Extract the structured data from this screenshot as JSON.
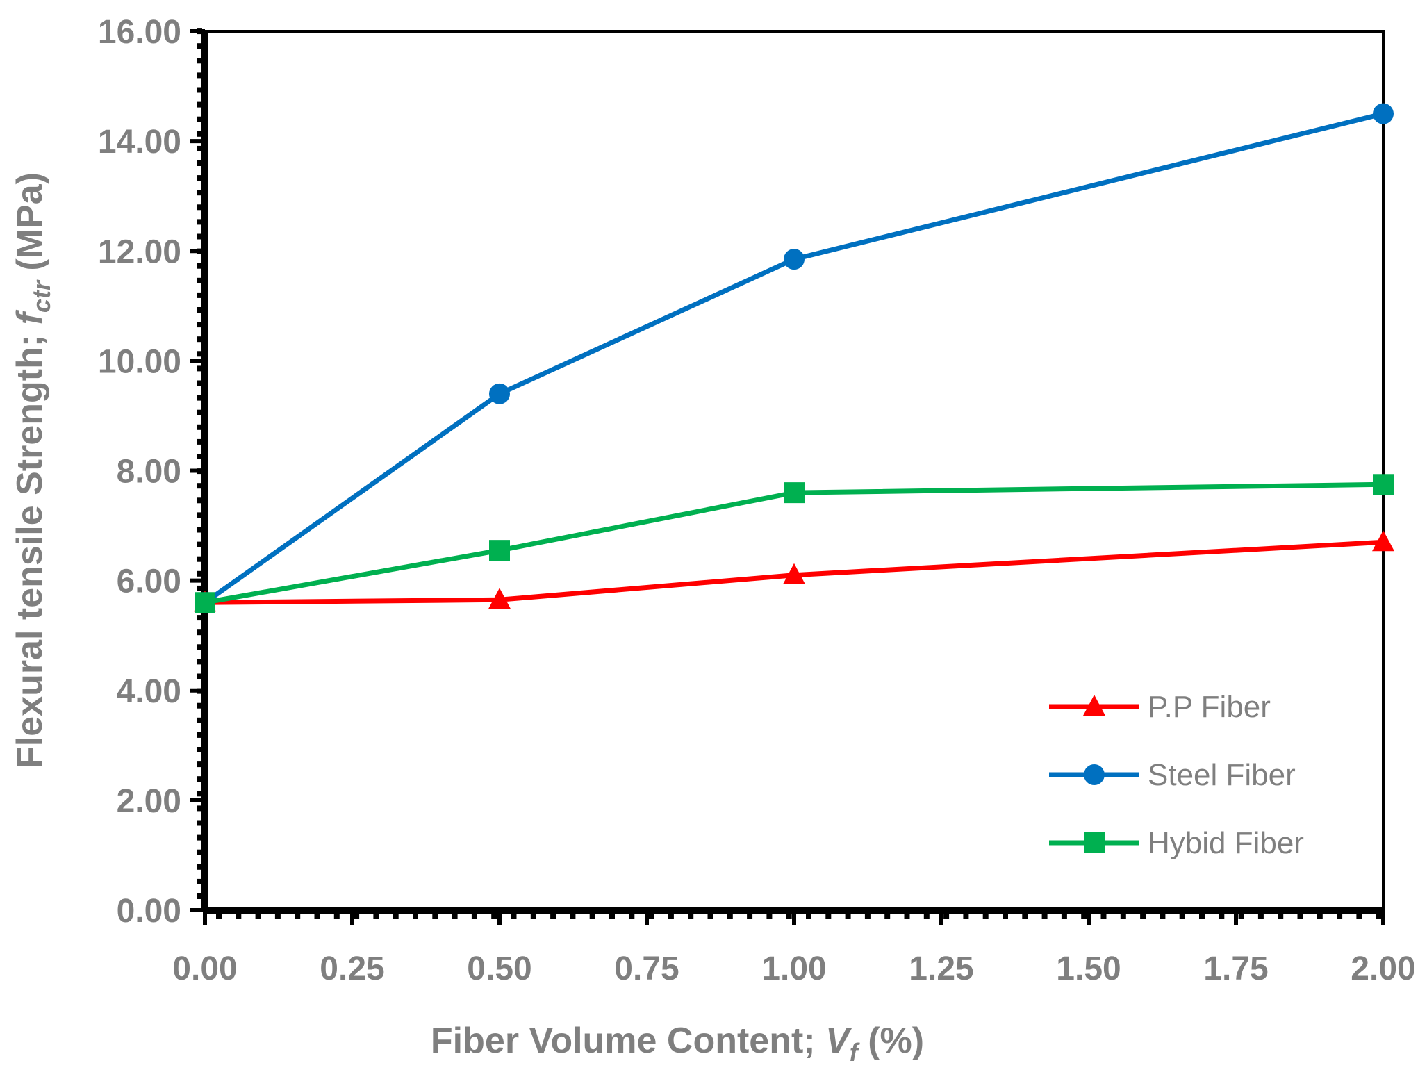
{
  "chart_data": {
    "type": "line",
    "xlabel": {
      "prefix": "Fiber Volume Content; ",
      "var": "V",
      "sub": "f",
      "suffix": " (%)"
    },
    "ylabel": {
      "prefix": "Flexural tensile Strength; ",
      "var": "f",
      "sub": "ctr",
      "suffix": " (MPa)"
    },
    "x_ticks": [
      "0.00",
      "0.25",
      "0.50",
      "0.75",
      "1.00",
      "1.25",
      "1.50",
      "1.75",
      "2.00"
    ],
    "y_ticks": [
      "0.00",
      "2.00",
      "4.00",
      "6.00",
      "8.00",
      "10.00",
      "12.00",
      "14.00",
      "16.00"
    ],
    "xlim": [
      0,
      2
    ],
    "ylim": [
      0,
      16
    ],
    "category_x": [
      0.0,
      0.5,
      1.0,
      2.0
    ],
    "series": [
      {
        "name": "P.P Fiber",
        "color": "#ff0000",
        "marker": "triangle",
        "values": [
          5.6,
          5.65,
          6.1,
          6.7
        ]
      },
      {
        "name": "Steel Fiber",
        "color": "#0070c0",
        "marker": "circle",
        "values": [
          5.6,
          9.4,
          11.85,
          14.5
        ]
      },
      {
        "name": "Hybid Fiber",
        "color": "#00b050",
        "marker": "square",
        "values": [
          5.6,
          6.55,
          7.6,
          7.75
        ]
      }
    ],
    "legend_position": "bottom-right"
  }
}
